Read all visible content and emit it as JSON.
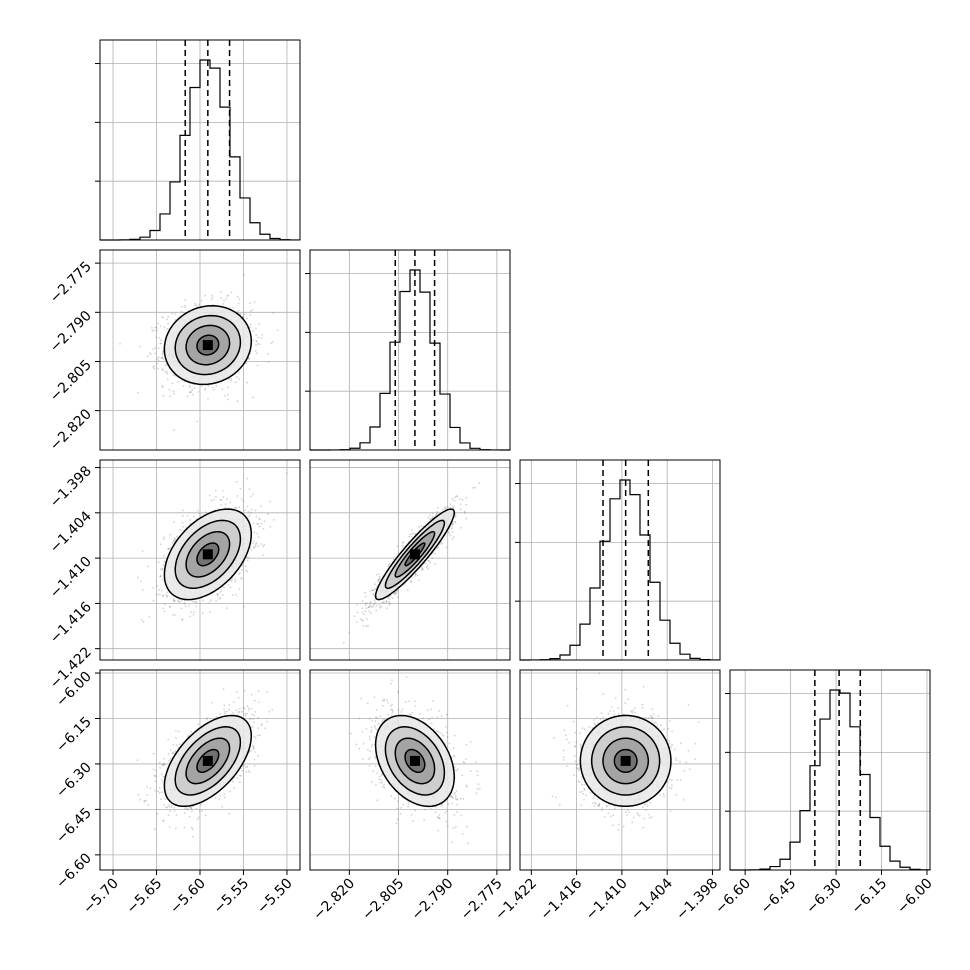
{
  "chart_data": {
    "type": "corner",
    "grid": true,
    "parameters": [
      {
        "range": [
          -5.715,
          -5.485
        ],
        "ticks": [
          -5.7,
          -5.65,
          -5.6,
          -5.55,
          -5.5
        ],
        "tick_labels": [
          "−5.70",
          "−5.65",
          "−5.60",
          "−5.55",
          "−5.50"
        ],
        "quantiles": [
          -5.617,
          -5.591,
          -5.566
        ],
        "mean": -5.591,
        "sd": 0.025
      },
      {
        "range": [
          -2.832,
          -2.771
        ],
        "ticks": [
          -2.82,
          -2.805,
          -2.79,
          -2.775
        ],
        "tick_labels": [
          "−2.820",
          "−2.805",
          "−2.790",
          "−2.775"
        ],
        "quantiles": [
          -2.806,
          -2.8,
          -2.794
        ],
        "mean": -2.8,
        "sd": 0.006
      },
      {
        "range": [
          -1.4235,
          -1.397
        ],
        "ticks": [
          -1.422,
          -1.416,
          -1.41,
          -1.404,
          -1.398
        ],
        "tick_labels": [
          "−1.422",
          "−1.416",
          "−1.410",
          "−1.404",
          "−1.398"
        ],
        "quantiles": [
          -1.4125,
          -1.4095,
          -1.4065
        ],
        "mean": -1.4095,
        "sd": 0.003
      },
      {
        "range": [
          -6.65,
          -5.99
        ],
        "ticks": [
          -6.6,
          -6.45,
          -6.3,
          -6.15,
          -6.0
        ],
        "tick_labels": [
          "−6.60",
          "−6.45",
          "−6.30",
          "−6.15",
          "−6.00"
        ],
        "quantiles": [
          -6.37,
          -6.29,
          -6.22
        ],
        "mean": -6.29,
        "sd": 0.075
      }
    ],
    "correlations": [
      [
        1.0,
        0.1,
        0.45,
        0.55
      ],
      [
        0.1,
        1.0,
        0.92,
        -0.35
      ],
      [
        0.45,
        0.92,
        1.0,
        0.0
      ],
      [
        0.55,
        -0.35,
        0.0,
        1.0
      ]
    ],
    "histogram_bins": 20,
    "scatter_color": "#808080",
    "contour_color": "#000000"
  }
}
